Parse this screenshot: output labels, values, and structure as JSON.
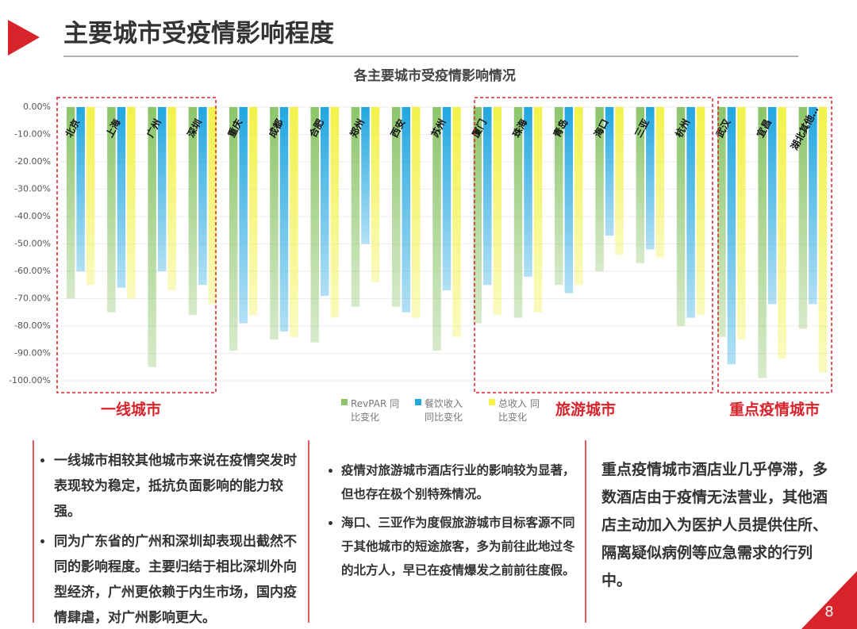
{
  "header": {
    "title": "主要城市受疫情影响程度",
    "page_number": "8"
  },
  "chart_data": {
    "type": "bar",
    "title": "各主要城市受疫情影响情况",
    "categories": [
      "北京",
      "上海",
      "广州",
      "深圳",
      "重庆",
      "成都",
      "合肥",
      "郑州",
      "西安",
      "苏州",
      "厦门",
      "珠海",
      "青岛",
      "海口",
      "三亚",
      "杭州",
      "武汉",
      "宜昌",
      "湖北其他…"
    ],
    "series": [
      {
        "name": "RevPAR 同比变化",
        "color": "#8cc56a",
        "values": [
          -70,
          -75,
          -95,
          -76,
          -89,
          -85,
          -86,
          -73,
          -73,
          -89,
          -79,
          -77,
          -65,
          -60,
          -57,
          -80,
          -84,
          -99,
          -81
        ]
      },
      {
        "name": "餐饮收入 同比变化",
        "color": "#22a7e0",
        "values": [
          -60,
          -66,
          -60,
          -65,
          -79,
          -82,
          -69,
          -50,
          -75,
          -67,
          -65,
          -62,
          -68,
          -47,
          -52,
          -77,
          -94,
          -72,
          -72
        ]
      },
      {
        "name": "总收入 同比变化",
        "color": "#f2f24a",
        "values": [
          -65,
          -70,
          -67,
          -72,
          -76,
          -84,
          -77,
          -64,
          -77,
          -84,
          -76,
          -75,
          -65,
          -54,
          -55,
          -76,
          -85,
          -92,
          -97
        ]
      }
    ],
    "ylim": [
      -100,
      0
    ],
    "yticks": [
      {
        "value": 0,
        "label": "0.00%"
      },
      {
        "value": -10,
        "label": "-10.00%"
      },
      {
        "value": -20,
        "label": "-20.00%"
      },
      {
        "value": -30,
        "label": "-30.00%"
      },
      {
        "value": -40,
        "label": "-40.00%"
      },
      {
        "value": -50,
        "label": "-50.00%"
      },
      {
        "value": -60,
        "label": "-60.00%"
      },
      {
        "value": -70,
        "label": "-70.00%"
      },
      {
        "value": -80,
        "label": "-80.00%"
      },
      {
        "value": -90,
        "label": "-90.00%"
      },
      {
        "value": -100,
        "label": "-100.00%"
      }
    ],
    "grid": true,
    "annotations": [
      "一线城市",
      "旅游城市",
      "重点疫情城市"
    ]
  },
  "notes": [
    {
      "bullets": [
        "一线城市相较其他城市来说在疫情突发时表现较为稳定，抵抗负面影响的能力较强。",
        "同为广东省的广州和深圳却表现出截然不同的影响程度。主要归结于相比深圳外向型经济，广州更依赖于内生市场，国内疫情肆虐，对广州影响更大。"
      ]
    },
    {
      "bullets": [
        "疫情对旅游城市酒店行业的影响较为显著，但也存在极个别特殊情况。",
        "海口、三亚作为度假旅游城市目标客源不同于其他城市的短途旅客，多为前往此地过冬的北方人，早已在疫情爆发之前前往度假。"
      ]
    },
    {
      "text": "重点疫情城市酒店业几乎停滞，多数酒店由于疫情无法营业，其他酒店主动加入为医护人员提供住所、隔离疑似病例等应急需求的行列中。"
    }
  ]
}
